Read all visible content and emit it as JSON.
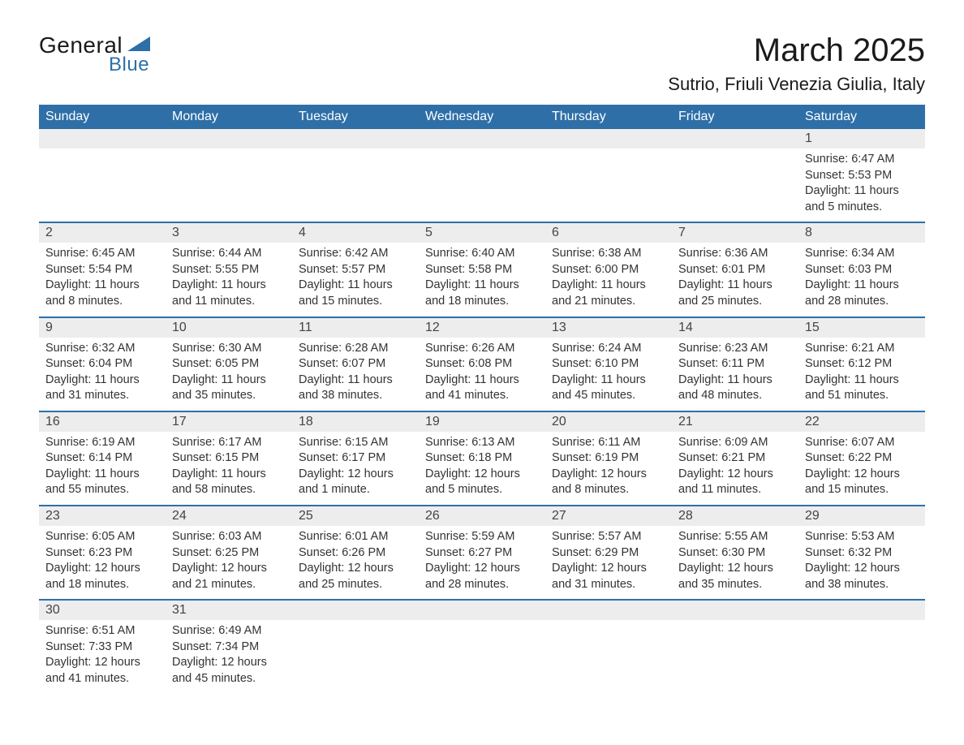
{
  "logo": {
    "top": "General",
    "bottom": "Blue"
  },
  "title": {
    "month": "March 2025",
    "location": "Sutrio, Friuli Venezia Giulia, Italy"
  },
  "colors": {
    "header_bg": "#2e6fa8",
    "header_fg": "#ffffff",
    "daynum_bg": "#ededed",
    "row_divider": "#2e6fa8",
    "text": "#333333"
  },
  "columns": [
    "Sunday",
    "Monday",
    "Tuesday",
    "Wednesday",
    "Thursday",
    "Friday",
    "Saturday"
  ],
  "weeks": [
    {
      "nums": [
        "",
        "",
        "",
        "",
        "",
        "",
        "1"
      ],
      "cells": [
        "",
        "",
        "",
        "",
        "",
        "",
        "Sunrise: 6:47 AM\nSunset: 5:53 PM\nDaylight: 11 hours and 5 minutes."
      ]
    },
    {
      "nums": [
        "2",
        "3",
        "4",
        "5",
        "6",
        "7",
        "8"
      ],
      "cells": [
        "Sunrise: 6:45 AM\nSunset: 5:54 PM\nDaylight: 11 hours and 8 minutes.",
        "Sunrise: 6:44 AM\nSunset: 5:55 PM\nDaylight: 11 hours and 11 minutes.",
        "Sunrise: 6:42 AM\nSunset: 5:57 PM\nDaylight: 11 hours and 15 minutes.",
        "Sunrise: 6:40 AM\nSunset: 5:58 PM\nDaylight: 11 hours and 18 minutes.",
        "Sunrise: 6:38 AM\nSunset: 6:00 PM\nDaylight: 11 hours and 21 minutes.",
        "Sunrise: 6:36 AM\nSunset: 6:01 PM\nDaylight: 11 hours and 25 minutes.",
        "Sunrise: 6:34 AM\nSunset: 6:03 PM\nDaylight: 11 hours and 28 minutes."
      ]
    },
    {
      "nums": [
        "9",
        "10",
        "11",
        "12",
        "13",
        "14",
        "15"
      ],
      "cells": [
        "Sunrise: 6:32 AM\nSunset: 6:04 PM\nDaylight: 11 hours and 31 minutes.",
        "Sunrise: 6:30 AM\nSunset: 6:05 PM\nDaylight: 11 hours and 35 minutes.",
        "Sunrise: 6:28 AM\nSunset: 6:07 PM\nDaylight: 11 hours and 38 minutes.",
        "Sunrise: 6:26 AM\nSunset: 6:08 PM\nDaylight: 11 hours and 41 minutes.",
        "Sunrise: 6:24 AM\nSunset: 6:10 PM\nDaylight: 11 hours and 45 minutes.",
        "Sunrise: 6:23 AM\nSunset: 6:11 PM\nDaylight: 11 hours and 48 minutes.",
        "Sunrise: 6:21 AM\nSunset: 6:12 PM\nDaylight: 11 hours and 51 minutes."
      ]
    },
    {
      "nums": [
        "16",
        "17",
        "18",
        "19",
        "20",
        "21",
        "22"
      ],
      "cells": [
        "Sunrise: 6:19 AM\nSunset: 6:14 PM\nDaylight: 11 hours and 55 minutes.",
        "Sunrise: 6:17 AM\nSunset: 6:15 PM\nDaylight: 11 hours and 58 minutes.",
        "Sunrise: 6:15 AM\nSunset: 6:17 PM\nDaylight: 12 hours and 1 minute.",
        "Sunrise: 6:13 AM\nSunset: 6:18 PM\nDaylight: 12 hours and 5 minutes.",
        "Sunrise: 6:11 AM\nSunset: 6:19 PM\nDaylight: 12 hours and 8 minutes.",
        "Sunrise: 6:09 AM\nSunset: 6:21 PM\nDaylight: 12 hours and 11 minutes.",
        "Sunrise: 6:07 AM\nSunset: 6:22 PM\nDaylight: 12 hours and 15 minutes."
      ]
    },
    {
      "nums": [
        "23",
        "24",
        "25",
        "26",
        "27",
        "28",
        "29"
      ],
      "cells": [
        "Sunrise: 6:05 AM\nSunset: 6:23 PM\nDaylight: 12 hours and 18 minutes.",
        "Sunrise: 6:03 AM\nSunset: 6:25 PM\nDaylight: 12 hours and 21 minutes.",
        "Sunrise: 6:01 AM\nSunset: 6:26 PM\nDaylight: 12 hours and 25 minutes.",
        "Sunrise: 5:59 AM\nSunset: 6:27 PM\nDaylight: 12 hours and 28 minutes.",
        "Sunrise: 5:57 AM\nSunset: 6:29 PM\nDaylight: 12 hours and 31 minutes.",
        "Sunrise: 5:55 AM\nSunset: 6:30 PM\nDaylight: 12 hours and 35 minutes.",
        "Sunrise: 5:53 AM\nSunset: 6:32 PM\nDaylight: 12 hours and 38 minutes."
      ]
    },
    {
      "nums": [
        "30",
        "31",
        "",
        "",
        "",
        "",
        ""
      ],
      "cells": [
        "Sunrise: 6:51 AM\nSunset: 7:33 PM\nDaylight: 12 hours and 41 minutes.",
        "Sunrise: 6:49 AM\nSunset: 7:34 PM\nDaylight: 12 hours and 45 minutes.",
        "",
        "",
        "",
        "",
        ""
      ]
    }
  ]
}
